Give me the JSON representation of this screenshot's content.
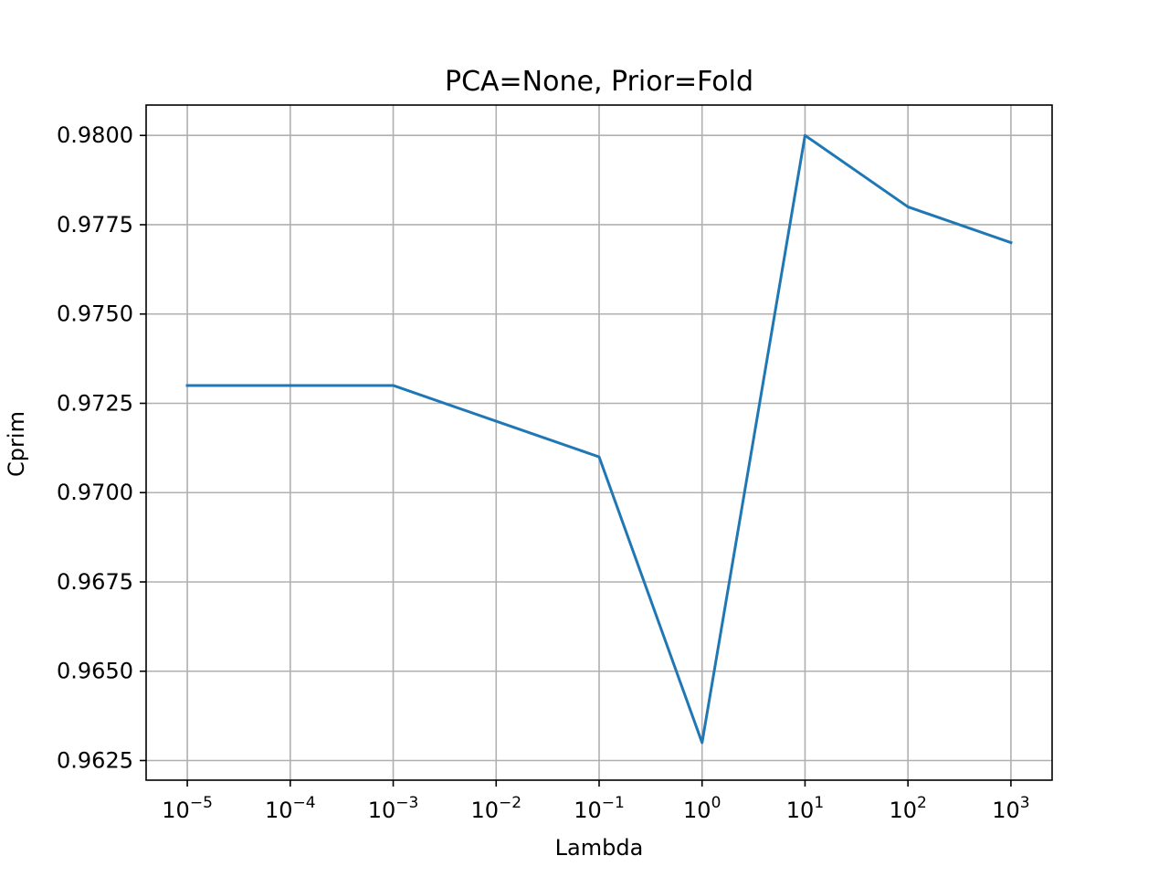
{
  "chart_data": {
    "type": "line",
    "title": "PCA=None, Prior=Fold",
    "xlabel": "Lambda",
    "ylabel": "Cprim",
    "x_scale": "log",
    "x": [
      1e-05,
      0.0001,
      0.001,
      0.01,
      0.1,
      1,
      10,
      100,
      1000
    ],
    "x_ticks": [
      {
        "base": "10",
        "exp": "−5"
      },
      {
        "base": "10",
        "exp": "−4"
      },
      {
        "base": "10",
        "exp": "−3"
      },
      {
        "base": "10",
        "exp": "−2"
      },
      {
        "base": "10",
        "exp": "−1"
      },
      {
        "base": "10",
        "exp": "0"
      },
      {
        "base": "10",
        "exp": "1"
      },
      {
        "base": "10",
        "exp": "2"
      },
      {
        "base": "10",
        "exp": "3"
      }
    ],
    "y_ticks": [
      "0.9625",
      "0.9650",
      "0.9675",
      "0.9700",
      "0.9725",
      "0.9750",
      "0.9775",
      "0.9800"
    ],
    "ylim": [
      0.96195,
      0.98085
    ],
    "xlim_log10": [
      -5.4,
      3.4
    ],
    "grid": true,
    "series": [
      {
        "color": "#1f77b4",
        "values": [
          0.973,
          0.973,
          0.973,
          0.972,
          0.971,
          0.963,
          0.98,
          0.978,
          0.977
        ]
      }
    ]
  }
}
